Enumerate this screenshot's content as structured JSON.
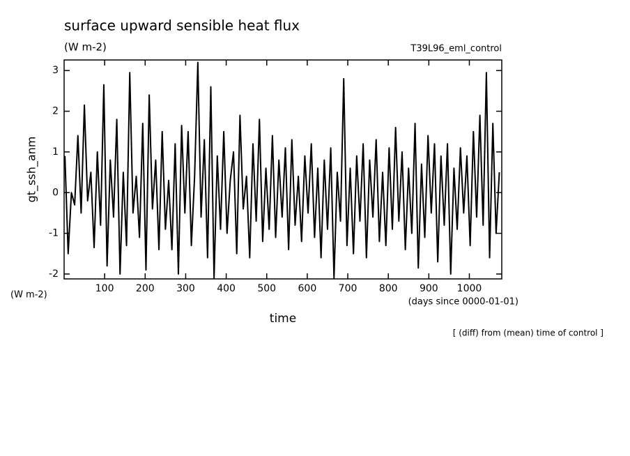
{
  "chart_data": {
    "type": "line",
    "title": "surface upward sensible heat flux",
    "units": "(W m-2)",
    "run_name": "T39L96_eml_control",
    "y_label": "gt_ssh_anm",
    "y_units": "(W m-2)",
    "x_label": "time",
    "x_units": "(days since 0000-01-01)",
    "note": "[ (diff) from (mean) time of control ]",
    "xlim": [
      0,
      1080
    ],
    "ylim": [
      -2.12,
      3.26
    ],
    "xticks": [
      100,
      200,
      300,
      400,
      500,
      600,
      700,
      800,
      900,
      1000
    ],
    "yticks": [
      -2,
      -1,
      0,
      1,
      2,
      3
    ],
    "x": [
      2,
      10,
      18,
      26,
      34,
      42,
      50,
      58,
      66,
      74,
      82,
      90,
      98,
      106,
      114,
      122,
      130,
      138,
      146,
      154,
      162,
      170,
      178,
      186,
      194,
      202,
      210,
      218,
      226,
      234,
      242,
      250,
      258,
      266,
      274,
      282,
      290,
      298,
      306,
      314,
      322,
      330,
      338,
      346,
      354,
      362,
      370,
      378,
      386,
      394,
      402,
      410,
      418,
      426,
      434,
      442,
      450,
      458,
      466,
      474,
      482,
      490,
      498,
      506,
      514,
      522,
      530,
      538,
      546,
      554,
      562,
      570,
      578,
      586,
      594,
      602,
      610,
      618,
      626,
      634,
      642,
      650,
      658,
      666,
      674,
      682,
      690,
      698,
      706,
      714,
      722,
      730,
      738,
      746,
      754,
      762,
      770,
      778,
      786,
      794,
      802,
      810,
      818,
      826,
      834,
      842,
      850,
      858,
      866,
      874,
      882,
      890,
      898,
      906,
      914,
      922,
      930,
      938,
      946,
      954,
      962,
      970,
      978,
      986,
      994,
      1002,
      1010,
      1018,
      1026,
      1034,
      1042,
      1050,
      1058,
      1066,
      1074
    ],
    "series": [
      {
        "color": "#000000",
        "values": [
          0.9,
          -1.5,
          0.0,
          -0.3,
          1.4,
          -0.5,
          2.15,
          -0.2,
          0.5,
          -1.35,
          1.0,
          -0.8,
          2.65,
          -1.8,
          0.8,
          -0.6,
          1.8,
          -2.0,
          0.5,
          -1.3,
          2.95,
          -0.5,
          0.4,
          -1.1,
          1.7,
          -1.9,
          2.4,
          -0.4,
          0.8,
          -1.4,
          1.5,
          -0.9,
          0.3,
          -1.4,
          1.2,
          -2.0,
          1.65,
          -0.5,
          1.5,
          -1.3,
          0.4,
          3.2,
          -0.6,
          1.3,
          -1.6,
          2.6,
          -2.1,
          0.9,
          -0.9,
          1.5,
          -1.0,
          0.3,
          1.0,
          -1.5,
          1.9,
          -0.4,
          0.4,
          -1.6,
          1.2,
          -0.7,
          1.8,
          -1.2,
          0.6,
          -0.9,
          1.4,
          -1.1,
          0.8,
          -0.6,
          1.1,
          -1.4,
          1.3,
          -0.8,
          0.4,
          -1.2,
          0.9,
          -0.5,
          1.2,
          -1.1,
          0.6,
          -1.6,
          0.8,
          -0.9,
          1.1,
          -2.1,
          0.5,
          -0.7,
          2.8,
          -1.3,
          0.6,
          -1.5,
          0.9,
          -0.7,
          1.2,
          -1.6,
          0.8,
          -0.6,
          1.3,
          -1.2,
          0.5,
          -1.3,
          1.1,
          -0.9,
          1.6,
          -0.7,
          1.0,
          -1.4,
          0.6,
          -1.0,
          1.7,
          -1.85,
          0.7,
          -1.1,
          1.4,
          -0.5,
          1.2,
          -1.7,
          0.9,
          -0.8,
          1.2,
          -2.0,
          0.6,
          -0.9,
          1.1,
          -0.5,
          0.9,
          -1.3,
          1.5,
          -0.6,
          1.9,
          -0.8,
          2.95,
          -1.6,
          1.7,
          -1.0,
          0.5
        ]
      }
    ]
  }
}
